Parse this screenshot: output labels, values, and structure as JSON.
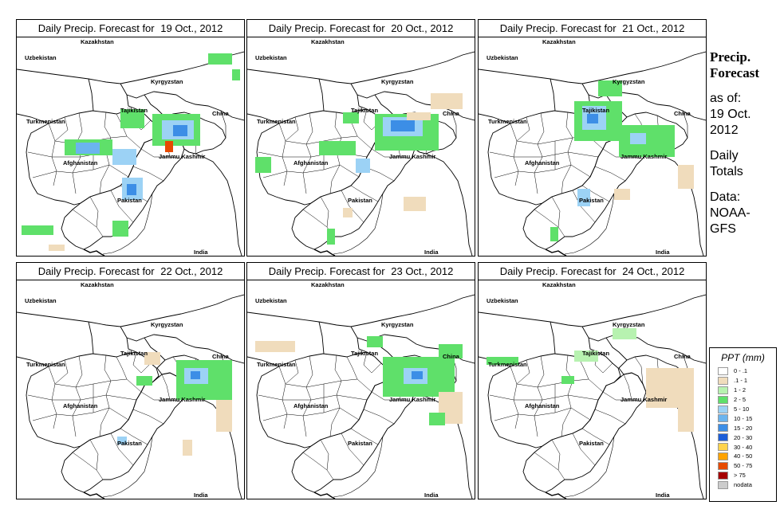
{
  "panels": [
    {
      "title_prefix": "Daily Precip. Forecast for",
      "date": "19 Oct., 2012"
    },
    {
      "title_prefix": "Daily Precip. Forecast for",
      "date": "20 Oct., 2012"
    },
    {
      "title_prefix": "Daily Precip. Forecast for",
      "date": "21 Oct., 2012"
    },
    {
      "title_prefix": "Daily Precip. Forecast for",
      "date": "22 Oct., 2012"
    },
    {
      "title_prefix": "Daily Precip. Forecast for",
      "date": "23 Oct., 2012"
    },
    {
      "title_prefix": "Daily Precip. Forecast for",
      "date": "24 Oct., 2012"
    }
  ],
  "map_labels": {
    "kazakhstan": "Kazakhstan",
    "uzbekistan": "Uzbekistan",
    "kyrgyzstan": "Kyrgyzstan",
    "tajikistan": "Tajikistan",
    "turkmenistan": "Turkmenistan",
    "china": "China",
    "afghanistan": "Afghanistan",
    "jammu_kashmir": "Jammu Kashmir",
    "pakistan": "Pakistan",
    "india": "India"
  },
  "side": {
    "heading_line1": "Precip.",
    "heading_line2": "Forecast",
    "asof_line1": "as of:",
    "asof_line2": "19 Oct.",
    "asof_line3": "2012",
    "type_line1": "Daily",
    "type_line2": "Totals",
    "data_line1": "Data:",
    "data_line2": "NOAA-",
    "data_line3": "GFS"
  },
  "legend": {
    "title": "PPT (mm)",
    "items": [
      {
        "label": "0 - .1",
        "color": "#ffffff"
      },
      {
        "label": ".1 - 1",
        "color": "#f0dcbc"
      },
      {
        "label": "1 - 2",
        "color": "#b7f2b0"
      },
      {
        "label": "2 - 5",
        "color": "#5fe06a"
      },
      {
        "label": "5 - 10",
        "color": "#9cd2f5"
      },
      {
        "label": "10 - 15",
        "color": "#6bb4ee"
      },
      {
        "label": "15 - 20",
        "color": "#3c8ee6"
      },
      {
        "label": "20 - 30",
        "color": "#1c5ed8"
      },
      {
        "label": "30 - 40",
        "color": "#ffd34d"
      },
      {
        "label": "40 - 50",
        "color": "#ffa300"
      },
      {
        "label": "50 - 75",
        "color": "#e64a00"
      },
      {
        "label": "> 75",
        "color": "#a50000"
      },
      {
        "label": "nodata",
        "color": "#cccccc"
      }
    ]
  },
  "precip_regions": [
    {
      "day": "19 Oct., 2012",
      "areas": [
        {
          "where": "north-central Afghanistan",
          "class": "5 - 10"
        },
        {
          "where": "Jammu Kashmir",
          "class": "15 - 20"
        },
        {
          "where": "northern Pakistan",
          "class": "10 - 15"
        },
        {
          "where": "Kyrgyzstan",
          "class": "2 - 5"
        }
      ]
    },
    {
      "day": "20 Oct., 2012",
      "areas": [
        {
          "where": "Jammu Kashmir",
          "class": "15 - 20"
        },
        {
          "where": "north-east Afghanistan",
          "class": "2 - 5"
        }
      ]
    },
    {
      "day": "21 Oct., 2012",
      "areas": [
        {
          "where": "Tajikistan",
          "class": "10 - 15"
        },
        {
          "where": "Jammu Kashmir",
          "class": "5 - 10"
        }
      ]
    },
    {
      "day": "22 Oct., 2012",
      "areas": [
        {
          "where": "Jammu Kashmir",
          "class": "5 - 10"
        },
        {
          "where": "Pakistan",
          "class": "1 - 2"
        }
      ]
    },
    {
      "day": "23 Oct., 2012",
      "areas": [
        {
          "where": "Jammu Kashmir",
          "class": "10 - 15"
        },
        {
          "where": "Tajikistan",
          "class": "2 - 5"
        }
      ]
    },
    {
      "day": "24 Oct., 2012",
      "areas": [
        {
          "where": "Jammu Kashmir",
          "class": ".1 - 1"
        },
        {
          "where": "Tajikistan",
          "class": "1 - 2"
        }
      ]
    }
  ]
}
